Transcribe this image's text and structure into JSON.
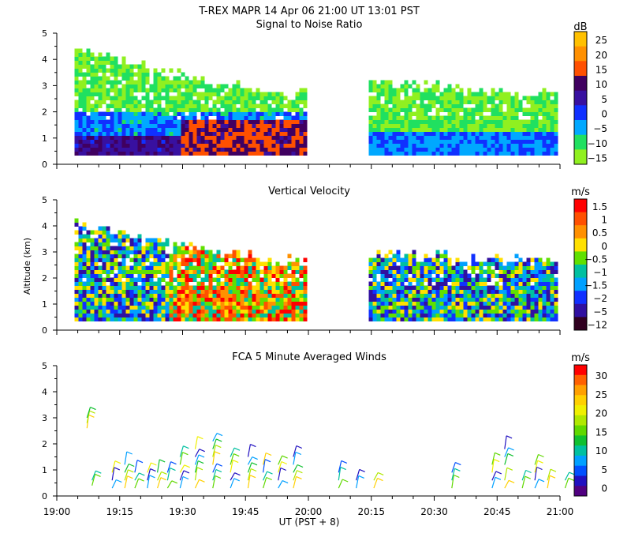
{
  "header": {
    "title": "T-REX   MAPR  14 Apr 06   21:00 UT   13:01   PST"
  },
  "chart_data": [
    {
      "type": "heatmap",
      "title": "Signal to Noise Ratio",
      "ylabel": "",
      "ylim": [
        0,
        5
      ],
      "yticks": [
        "0",
        "1",
        "2",
        "3",
        "4",
        "5"
      ],
      "colorbar": {
        "unit": "dB",
        "labels": [
          "25",
          "20",
          "15",
          "10",
          "5",
          "0",
          "−5",
          "−10",
          "−15"
        ],
        "colors": [
          "#ffc000",
          "#ff9000",
          "#ff5000",
          "#400060",
          "#3810a0",
          "#1030ff",
          "#00a8ff",
          "#20e060",
          "#90f020"
        ]
      },
      "coverage": [
        {
          "x0": 0.07,
          "x1": 0.99,
          "top": 4.3,
          "base": 0.35
        },
        {
          "x0": 1.24,
          "x1": 1.99,
          "top": 3.1,
          "base": 0.35
        }
      ]
    },
    {
      "type": "heatmap",
      "title": "Vertical Velocity",
      "ylabel": "Altitude  (km)",
      "ylim": [
        0,
        5
      ],
      "yticks": [
        "0",
        "1",
        "2",
        "3",
        "4",
        "5"
      ],
      "colorbar": {
        "unit": "m/s",
        "labels": [
          "1.5",
          "1",
          "0.5",
          "0",
          "−0.5",
          "−1",
          "−1.5",
          "−2",
          "−5",
          "−12"
        ],
        "colors": [
          "#ff0000",
          "#ff5000",
          "#ff9000",
          "#ffe000",
          "#60e000",
          "#00c0a0",
          "#00a0ff",
          "#1030ff",
          "#3010a0",
          "#300020"
        ]
      },
      "coverage": [
        {
          "x0": 0.07,
          "x1": 0.99,
          "top": 4.0,
          "base": 0.35
        },
        {
          "x0": 1.24,
          "x1": 1.99,
          "top": 2.9,
          "base": 0.35
        }
      ]
    },
    {
      "type": "scatter",
      "title": "FCA 5 Minute Averaged Winds",
      "xlabel": "UT  (PST + 8)",
      "ylim": [
        0,
        5
      ],
      "yticks": [
        "0",
        "1",
        "2",
        "3",
        "4",
        "5"
      ],
      "xticks": [
        "19:00",
        "19:15",
        "19:30",
        "19:45",
        "20:00",
        "20:15",
        "20:30",
        "20:45",
        "21:00"
      ],
      "colorbar": {
        "unit": "m/s",
        "labels": [
          "30",
          "25",
          "20",
          "15",
          "10",
          "5",
          "0"
        ],
        "colors": [
          "#ff0000",
          "#ff6000",
          "#ffa000",
          "#ffd000",
          "#f0f000",
          "#b0e800",
          "#60d800",
          "#10c030",
          "#00c0a0",
          "#00a0ff",
          "#0050ff",
          "#2010c0",
          "#500080"
        ]
      },
      "barbs": [
        {
          "t": 0.12,
          "alts": [
            2.6,
            2.8,
            3.0
          ]
        },
        {
          "t": 0.14,
          "alts": [
            0.4,
            0.6
          ]
        },
        {
          "t": 0.22,
          "alts": [
            0.3,
            0.6,
            0.9
          ]
        },
        {
          "t": 0.27,
          "alts": [
            0.3,
            0.6,
            0.9,
            1.2
          ]
        },
        {
          "t": 0.31,
          "alts": [
            0.3,
            0.6,
            0.9
          ]
        },
        {
          "t": 0.36,
          "alts": [
            0.3,
            0.6,
            0.9
          ]
        },
        {
          "t": 0.4,
          "alts": [
            0.3,
            0.6,
            0.9
          ]
        },
        {
          "t": 0.44,
          "alts": [
            0.3,
            0.6,
            0.9
          ]
        },
        {
          "t": 0.49,
          "alts": [
            0.3,
            0.6,
            0.9,
            1.2,
            1.5
          ]
        },
        {
          "t": 0.55,
          "alts": [
            0.3,
            0.6,
            0.9,
            1.2,
            1.5,
            1.8
          ]
        },
        {
          "t": 0.62,
          "alts": [
            0.3,
            0.6,
            0.9,
            1.2,
            1.5,
            1.8,
            2.1
          ]
        },
        {
          "t": 0.69,
          "alts": [
            0.3,
            0.6,
            0.9,
            1.2,
            1.5
          ]
        },
        {
          "t": 0.76,
          "alts": [
            0.3,
            0.6,
            0.9,
            1.2,
            1.5
          ]
        },
        {
          "t": 0.82,
          "alts": [
            0.3,
            0.6,
            0.9,
            1.2
          ]
        },
        {
          "t": 0.88,
          "alts": [
            0.3,
            0.6,
            0.9,
            1.2
          ]
        },
        {
          "t": 0.94,
          "alts": [
            0.3,
            0.6,
            0.9,
            1.2,
            1.5
          ]
        },
        {
          "t": 1.12,
          "alts": [
            0.3,
            0.6,
            0.9
          ]
        },
        {
          "t": 1.19,
          "alts": [
            0.3,
            0.6
          ]
        },
        {
          "t": 1.26,
          "alts": [
            0.3,
            0.6
          ]
        },
        {
          "t": 1.57,
          "alts": [
            0.3,
            0.6,
            0.9
          ]
        },
        {
          "t": 1.73,
          "alts": [
            0.3,
            0.6,
            0.9,
            1.2
          ]
        },
        {
          "t": 1.78,
          "alts": [
            0.3,
            0.6,
            1.2,
            1.5,
            1.8
          ]
        },
        {
          "t": 1.85,
          "alts": [
            0.3,
            0.6
          ]
        },
        {
          "t": 1.9,
          "alts": [
            0.3,
            0.6,
            0.9,
            1.2
          ]
        },
        {
          "t": 1.95,
          "alts": [
            0.3,
            0.6
          ]
        },
        {
          "t": 2.02,
          "alts": [
            0.3,
            0.6
          ]
        }
      ]
    }
  ]
}
